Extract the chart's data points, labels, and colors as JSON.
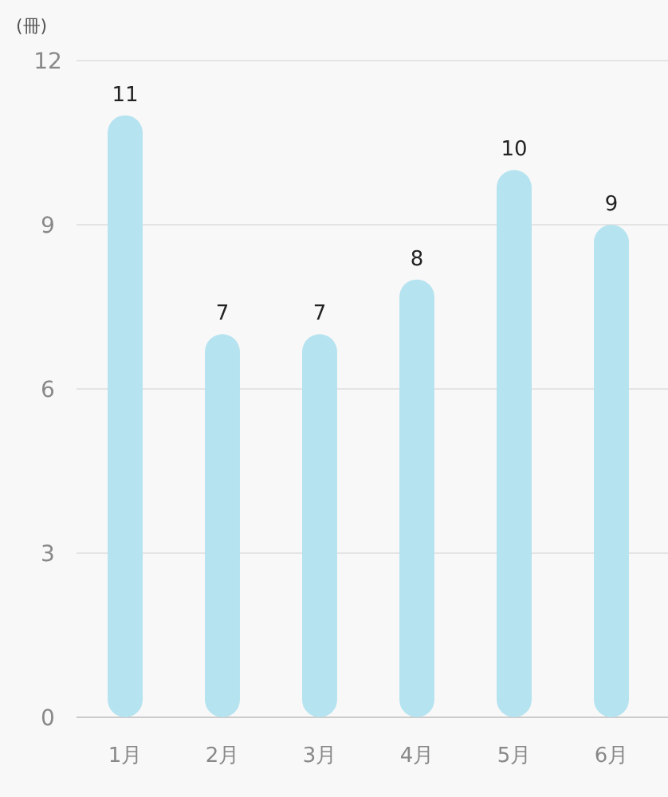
{
  "chart_data": {
    "type": "bar",
    "ylabel": "(冊)",
    "categories": [
      "1月",
      "2月",
      "3月",
      "4月",
      "5月",
      "6月"
    ],
    "values": [
      11,
      7,
      7,
      8,
      10,
      9
    ],
    "color": "#b5e3f0",
    "ylim": [
      0,
      12
    ],
    "yticks": [
      0,
      3,
      6,
      9,
      12
    ],
    "grid": "y",
    "data_labels": true
  }
}
